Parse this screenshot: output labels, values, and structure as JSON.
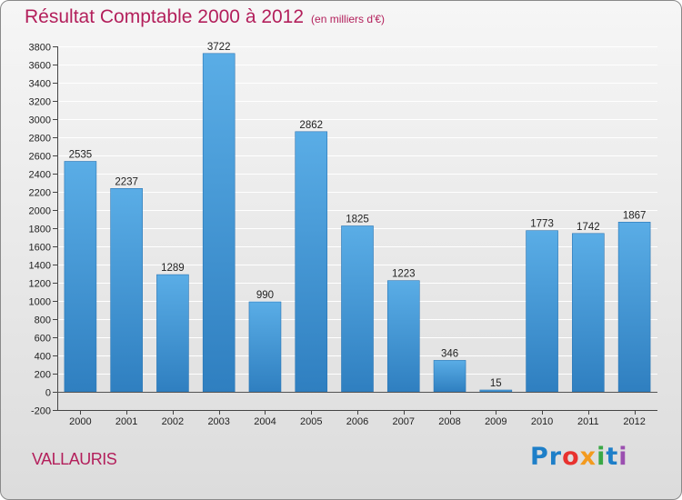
{
  "chart_data": {
    "type": "bar",
    "title": "Résultat Comptable 2000 à 2012",
    "subtitle": "(en milliers d'€)",
    "categories": [
      "2000",
      "2001",
      "2002",
      "2003",
      "2004",
      "2005",
      "2006",
      "2007",
      "2008",
      "2009",
      "2010",
      "2011",
      "2012"
    ],
    "values": [
      2535,
      2237,
      1289,
      3722,
      990,
      2862,
      1825,
      1223,
      346,
      15,
      1773,
      1742,
      1867
    ],
    "ylim": [
      -200,
      3800
    ],
    "yticks": [
      -200,
      0,
      200,
      400,
      600,
      800,
      1000,
      1200,
      1400,
      1600,
      1800,
      2000,
      2200,
      2400,
      2600,
      2800,
      3000,
      3200,
      3400,
      3600,
      3800
    ],
    "xlabel": "",
    "ylabel": "",
    "bar_color": "#4a9fdc"
  },
  "location": "VALLAURIS",
  "brand": {
    "p1": "Pr",
    "p2": "o",
    "p3": "x",
    "p4": "i",
    "p5": "t",
    "p6": "i"
  }
}
